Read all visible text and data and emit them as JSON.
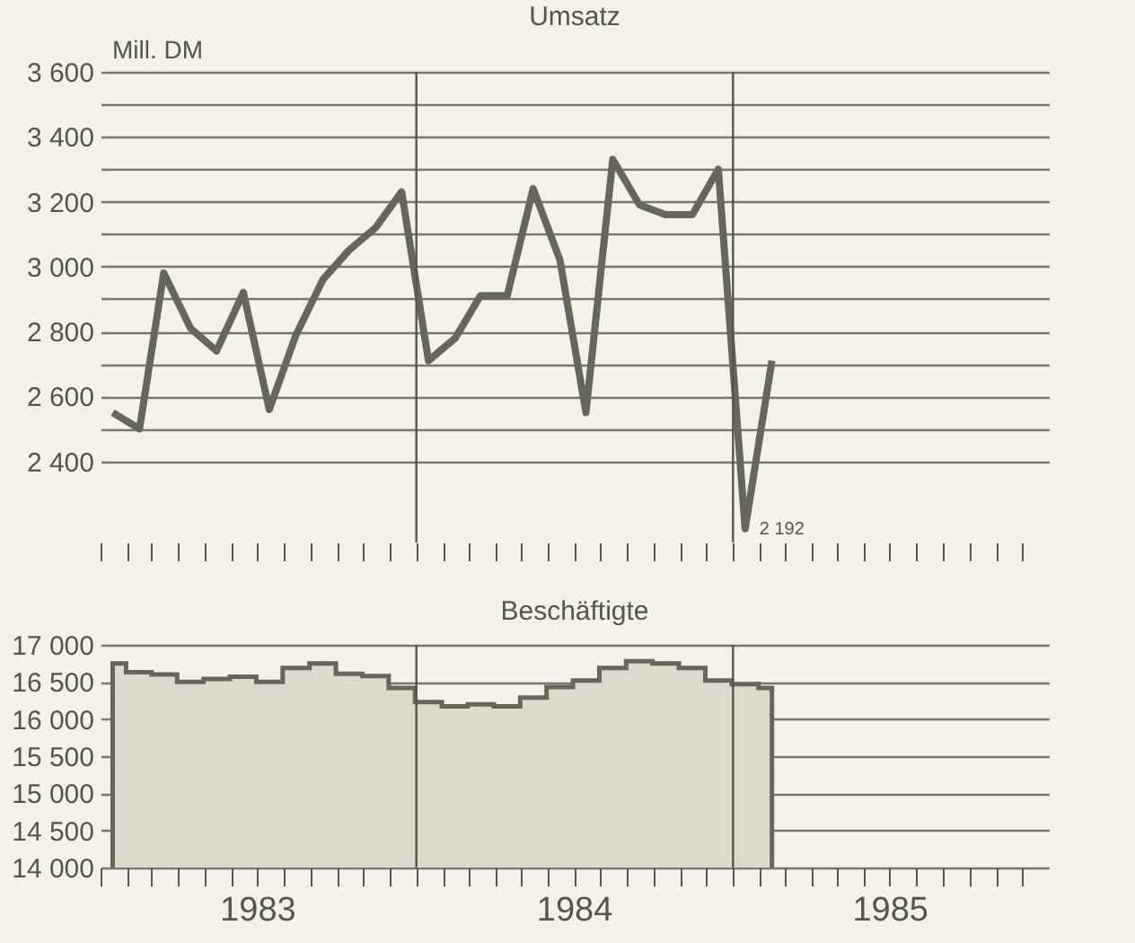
{
  "chart_data": [
    {
      "type": "line",
      "title": "Umsatz",
      "ylabel": "Mill. DM",
      "x": [
        "1983-01-15",
        "1983-02-15",
        "1983-03-15",
        "1983-04-15",
        "1983-05-15",
        "1983-06-15",
        "1983-07-15",
        "1983-08-15",
        "1983-09-15",
        "1983-10-15",
        "1983-11-15",
        "1983-12-15",
        "1984-01-15",
        "1984-02-15",
        "1984-03-15",
        "1984-04-15",
        "1984-05-15",
        "1984-06-15",
        "1984-07-15",
        "1984-08-15",
        "1984-09-15",
        "1984-10-15",
        "1984-11-15",
        "1984-12-15",
        "1985-01-15",
        "1985-02-15"
      ],
      "series": [
        {
          "color": "#66665a",
          "values": [
            2550,
            2500,
            2980,
            2810,
            2740,
            2920,
            2560,
            2790,
            2960,
            3050,
            3120,
            3230,
            2710,
            2780,
            2910,
            2910,
            3240,
            3020,
            2550,
            3330,
            3190,
            3160,
            3160,
            3300,
            2192,
            2710
          ]
        }
      ],
      "xlim": [
        "1983-01-01",
        "1986-01-01"
      ],
      "xticks": [
        {
          "value": "1983-01-01",
          "label": null
        },
        {
          "value": "1983-02-01",
          "label": null
        },
        {
          "value": "1983-03-01",
          "label": null
        },
        {
          "value": "1983-04-01",
          "label": null
        },
        {
          "value": "1983-05-01",
          "label": null
        },
        {
          "value": "1983-06-01",
          "label": null
        },
        {
          "value": "1983-07-01",
          "label": null
        },
        {
          "value": "1983-08-01",
          "label": null
        },
        {
          "value": "1983-09-01",
          "label": null
        },
        {
          "value": "1983-10-01",
          "label": null
        },
        {
          "value": "1983-11-01",
          "label": null
        },
        {
          "value": "1983-12-01",
          "label": null
        },
        {
          "value": "1984-01-01",
          "label": null
        },
        {
          "value": "1984-02-01",
          "label": null
        },
        {
          "value": "1984-03-01",
          "label": null
        },
        {
          "value": "1984-04-01",
          "label": null
        },
        {
          "value": "1984-05-01",
          "label": null
        },
        {
          "value": "1984-06-01",
          "label": null
        },
        {
          "value": "1984-07-01",
          "label": null
        },
        {
          "value": "1984-08-01",
          "label": null
        },
        {
          "value": "1984-09-01",
          "label": null
        },
        {
          "value": "1984-10-01",
          "label": null
        },
        {
          "value": "1984-11-01",
          "label": null
        },
        {
          "value": "1984-12-01",
          "label": null
        },
        {
          "value": "1985-01-01",
          "label": null
        },
        {
          "value": "1985-02-01",
          "label": null
        },
        {
          "value": "1985-03-01",
          "label": null
        },
        {
          "value": "1985-04-01",
          "label": null
        },
        {
          "value": "1985-05-01",
          "label": null
        },
        {
          "value": "1985-06-01",
          "label": null
        },
        {
          "value": "1985-07-01",
          "label": null
        },
        {
          "value": "1985-08-01",
          "label": null
        },
        {
          "value": "1985-09-01",
          "label": null
        },
        {
          "value": "1985-10-01",
          "label": null
        },
        {
          "value": "1985-11-01",
          "label": null
        },
        {
          "value": "1985-12-01",
          "label": null
        }
      ],
      "ylim": [
        2150,
        3600
      ],
      "yticks": [
        {
          "value": 2400,
          "label": "2 400"
        },
        {
          "value": 2500,
          "label": null
        },
        {
          "value": 2600,
          "label": "2 600"
        },
        {
          "value": 2700,
          "label": null
        },
        {
          "value": 2800,
          "label": "2 800"
        },
        {
          "value": 2900,
          "label": null
        },
        {
          "value": 3000,
          "label": "3 000"
        },
        {
          "value": 3100,
          "label": null
        },
        {
          "value": 3200,
          "label": "3 200"
        },
        {
          "value": 3300,
          "label": null
        },
        {
          "value": 3400,
          "label": "3 400"
        },
        {
          "value": 3500,
          "label": null
        },
        {
          "value": 3600,
          "label": "3 600"
        }
      ],
      "grid": "y",
      "tick_labels": "y",
      "ref_lines": [
        {
          "axis": "x",
          "value": "1984-01-01"
        },
        {
          "axis": "x",
          "value": "1985-01-01"
        }
      ],
      "annotations": [
        {
          "text": "2 192",
          "x": "1985-01-15",
          "y": 2192
        }
      ]
    },
    {
      "type": "area",
      "title": "Beschäftigte",
      "x": [
        "1983-01-15",
        "1983-02-15",
        "1983-03-15",
        "1983-04-15",
        "1983-05-15",
        "1983-06-15",
        "1983-07-15",
        "1983-08-15",
        "1983-09-15",
        "1983-10-15",
        "1983-11-15",
        "1983-12-15",
        "1984-01-15",
        "1984-02-15",
        "1984-03-15",
        "1984-04-15",
        "1984-05-15",
        "1984-06-15",
        "1984-07-15",
        "1984-08-15",
        "1984-09-15",
        "1984-10-15",
        "1984-11-15",
        "1984-12-15",
        "1985-01-15",
        "1985-02-15"
      ],
      "series": [
        {
          "color": "#dcd9cf",
          "values": [
            16750,
            16630,
            16600,
            16500,
            16540,
            16570,
            16500,
            16690,
            16750,
            16610,
            16580,
            16420,
            16230,
            16170,
            16200,
            16170,
            16290,
            16430,
            16520,
            16690,
            16780,
            16750,
            16690,
            16520,
            16470,
            16420
          ]
        }
      ],
      "xlim": [
        "1983-01-01",
        "1986-01-01"
      ],
      "xticks": [
        {
          "value": "1983-01-01",
          "label": null
        },
        {
          "value": "1983-02-01",
          "label": null
        },
        {
          "value": "1983-03-01",
          "label": null
        },
        {
          "value": "1983-04-01",
          "label": null
        },
        {
          "value": "1983-05-01",
          "label": null
        },
        {
          "value": "1983-06-01",
          "label": null
        },
        {
          "value": "1983-07-01",
          "label": "1983"
        },
        {
          "value": "1983-08-01",
          "label": null
        },
        {
          "value": "1983-09-01",
          "label": null
        },
        {
          "value": "1983-10-01",
          "label": null
        },
        {
          "value": "1983-11-01",
          "label": null
        },
        {
          "value": "1983-12-01",
          "label": null
        },
        {
          "value": "1984-01-01",
          "label": null
        },
        {
          "value": "1984-02-01",
          "label": null
        },
        {
          "value": "1984-03-01",
          "label": null
        },
        {
          "value": "1984-04-01",
          "label": null
        },
        {
          "value": "1984-05-01",
          "label": null
        },
        {
          "value": "1984-06-01",
          "label": null
        },
        {
          "value": "1984-07-01",
          "label": "1984"
        },
        {
          "value": "1984-08-01",
          "label": null
        },
        {
          "value": "1984-09-01",
          "label": null
        },
        {
          "value": "1984-10-01",
          "label": null
        },
        {
          "value": "1984-11-01",
          "label": null
        },
        {
          "value": "1984-12-01",
          "label": null
        },
        {
          "value": "1985-01-01",
          "label": null
        },
        {
          "value": "1985-02-01",
          "label": null
        },
        {
          "value": "1985-03-01",
          "label": null
        },
        {
          "value": "1985-04-01",
          "label": null
        },
        {
          "value": "1985-05-01",
          "label": null
        },
        {
          "value": "1985-06-01",
          "label": null
        },
        {
          "value": "1985-07-01",
          "label": "1985"
        },
        {
          "value": "1985-08-01",
          "label": null
        },
        {
          "value": "1985-09-01",
          "label": null
        },
        {
          "value": "1985-10-01",
          "label": null
        },
        {
          "value": "1985-11-01",
          "label": null
        },
        {
          "value": "1985-12-01",
          "label": null
        }
      ],
      "ylim": [
        14000,
        17000
      ],
      "yticks": [
        {
          "value": 14000,
          "label": "14 000"
        },
        {
          "value": 14500,
          "label": "14 500"
        },
        {
          "value": 15000,
          "label": "15 000"
        },
        {
          "value": 15500,
          "label": "15 500"
        },
        {
          "value": 16000,
          "label": "16 000"
        },
        {
          "value": 16500,
          "label": "16 500"
        },
        {
          "value": 17000,
          "label": "17 000"
        }
      ],
      "grid": "y",
      "ref_lines": [
        {
          "axis": "x",
          "value": "1984-01-01"
        },
        {
          "axis": "x",
          "value": "1985-01-01"
        }
      ]
    }
  ]
}
